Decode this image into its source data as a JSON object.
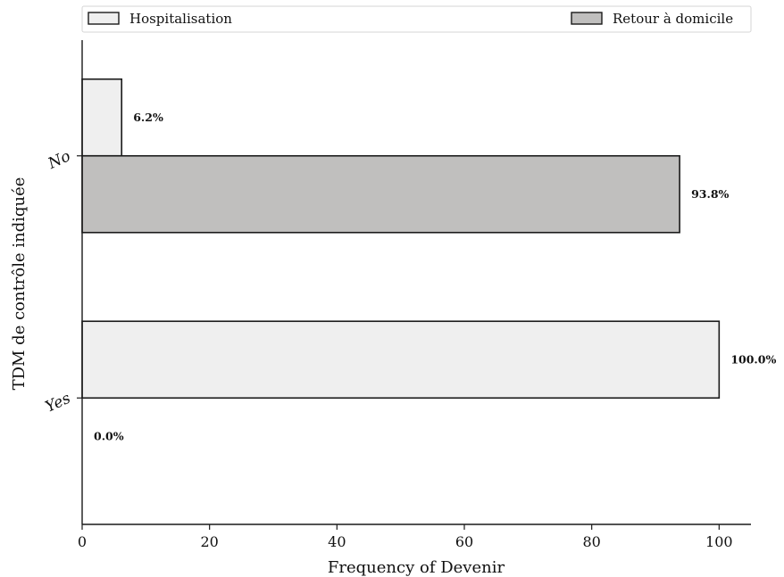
{
  "chart_data": {
    "type": "bar",
    "orientation": "horizontal",
    "title": "",
    "xlabel": "Frequency of Devenir",
    "ylabel": "TDM de contrôle indiquée",
    "xlim": [
      0,
      105
    ],
    "xticks": [
      0,
      20,
      40,
      60,
      80,
      100
    ],
    "categories": [
      "No",
      "Yes"
    ],
    "series": [
      {
        "name": "Hospitalisation",
        "values": [
          6.2,
          100.0
        ],
        "labels": [
          "6.2%",
          "100.0%"
        ],
        "color": "#efefef"
      },
      {
        "name": "Retour à domicile",
        "values": [
          93.8,
          0.0
        ],
        "labels": [
          "93.8%",
          "0.0%"
        ],
        "color": "#c0bfbe"
      }
    ],
    "legend": "top",
    "grid": false,
    "edge_color": "#1a1a1a"
  }
}
